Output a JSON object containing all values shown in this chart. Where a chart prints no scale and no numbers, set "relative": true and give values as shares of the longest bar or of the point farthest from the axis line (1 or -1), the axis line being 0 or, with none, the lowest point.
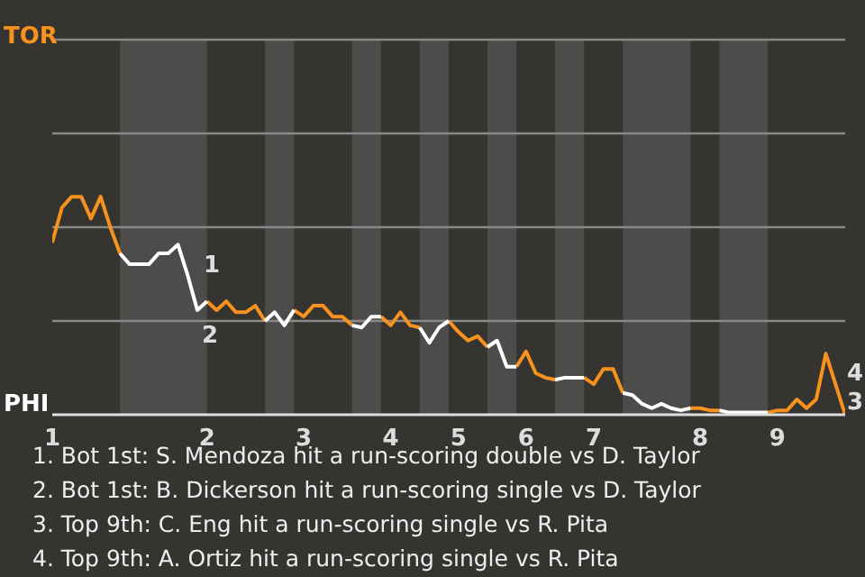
{
  "chart_data": {
    "type": "line",
    "relative": true,
    "categories": [
      "1",
      null,
      null,
      null,
      null,
      null,
      null,
      null,
      null,
      null,
      null,
      null,
      null,
      null,
      null,
      null,
      "2",
      null,
      null,
      null,
      null,
      null,
      null,
      null,
      null,
      null,
      "3",
      null,
      null,
      null,
      null,
      null,
      null,
      null,
      null,
      "4",
      null,
      null,
      null,
      null,
      null,
      null,
      "5",
      null,
      null,
      null,
      null,
      null,
      null,
      "6",
      null,
      null,
      null,
      null,
      null,
      null,
      "7",
      null,
      null,
      null,
      null,
      null,
      null,
      null,
      null,
      null,
      null,
      "8",
      null,
      null,
      null,
      null,
      null,
      null,
      null,
      "9",
      null,
      null,
      null,
      null,
      null,
      null,
      null
    ],
    "series": [
      {
        "color": "#f7921e",
        "values": [
          0.79,
          0.95,
          1,
          1,
          0.9,
          1,
          0.86,
          0.74,
          null,
          null,
          null,
          null,
          null,
          null,
          null,
          null,
          0.52,
          0.48,
          0.52,
          0.47,
          0.47,
          0.5,
          0.43,
          null,
          null,
          0.48,
          0.45,
          0.5,
          0.5,
          0.45,
          0.45,
          0.41,
          null,
          null,
          0.45,
          0.41,
          0.47,
          0.41,
          0.4,
          null,
          null,
          0.43,
          0.38,
          0.34,
          0.36,
          0.31,
          null,
          null,
          0.22,
          0.29,
          0.19,
          0.17,
          0.16,
          null,
          null,
          0.17,
          0.14,
          0.21,
          0.21,
          0.1,
          null,
          null,
          null,
          null,
          null,
          null,
          0.03,
          0.03,
          0.02,
          0.02,
          null,
          null,
          null,
          null,
          0.01,
          0.02,
          0.02,
          0.07,
          0.03,
          0.07,
          0.28,
          0.14,
          0
        ]
      },
      {
        "color": "#ffffff",
        "values": [
          null,
          null,
          null,
          null,
          null,
          null,
          null,
          0.74,
          0.69,
          0.69,
          0.69,
          0.74,
          0.74,
          0.78,
          0.64,
          0.48,
          0.52,
          null,
          null,
          null,
          null,
          null,
          0.43,
          0.47,
          0.41,
          0.48,
          null,
          null,
          null,
          null,
          null,
          0.41,
          0.4,
          0.45,
          0.45,
          null,
          null,
          null,
          0.4,
          0.33,
          0.4,
          0.43,
          null,
          null,
          null,
          0.31,
          0.34,
          0.22,
          0.22,
          null,
          null,
          null,
          0.16,
          0.17,
          0.17,
          0.17,
          null,
          null,
          null,
          0.1,
          0.09,
          0.05,
          0.03,
          0.05,
          0.03,
          0.02,
          0.03,
          null,
          null,
          0.02,
          0.01,
          0.01,
          0.01,
          0.01,
          0.01,
          null,
          null,
          null,
          null,
          null,
          null,
          null,
          null
        ]
      }
    ],
    "marker": "none",
    "line_style": "solid",
    "ref_lines": [
      {
        "axis": "y",
        "value": 0.43,
        "color": "#8a8987"
      },
      {
        "axis": "y",
        "value": 0.86,
        "color": "#8a8987"
      },
      {
        "axis": "y",
        "value": 1.29,
        "color": "#8a8987"
      },
      {
        "axis": "y",
        "value": 1.72,
        "color": "#8a8987"
      }
    ],
    "annotations": [
      "TOR",
      "PHI",
      "1",
      "2",
      "3",
      "4",
      "1. Bot 1st: S. Mendoza hit a run-scoring double vs D. Taylor",
      "2. Bot 1st: B. Dickerson hit a run-scoring single vs D. Taylor",
      "3. Top 9th: C. Eng hit a run-scoring single vs R. Pita",
      "4. Top 9th: A. Ortiz hit a run-scoring single vs R. Pita"
    ]
  }
}
